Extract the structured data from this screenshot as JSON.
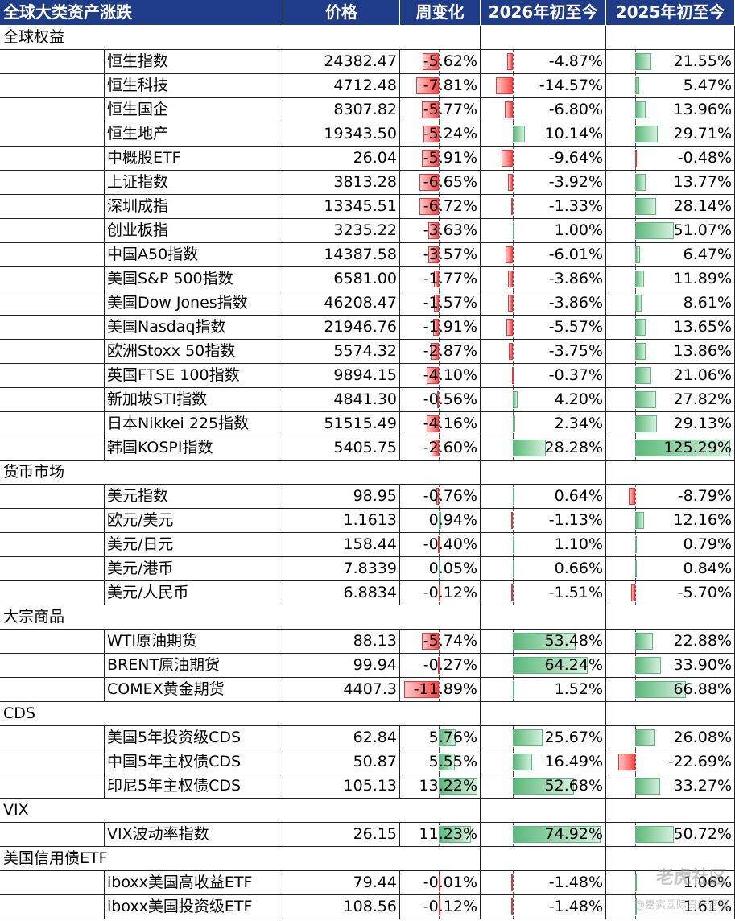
{
  "header": [
    "全球大类资产涨跌",
    "价格",
    "周变化",
    "2026年初至今",
    "2025年初至今"
  ],
  "sections": [
    {
      "title": "全球权益",
      "rows": [
        {
          "name": "恒生指数",
          "price": "24382.47",
          "week": {
            "value": -5.62,
            "label": "-5.62%"
          },
          "ytd_2026": {
            "value": -4.87,
            "label": "-4.87%"
          },
          "ytd_2025": {
            "value": 21.55,
            "label": "21.55%"
          }
        },
        {
          "name": "恒生科技",
          "price": "4712.48",
          "week": {
            "value": -7.81,
            "label": "-7.81%"
          },
          "ytd_2026": {
            "value": -14.57,
            "label": "-14.57%"
          },
          "ytd_2025": {
            "value": 5.47,
            "label": "5.47%"
          }
        },
        {
          "name": "恒生国企",
          "price": "8307.82",
          "week": {
            "value": -5.77,
            "label": "-5.77%"
          },
          "ytd_2026": {
            "value": -6.8,
            "label": "-6.80%"
          },
          "ytd_2025": {
            "value": 13.96,
            "label": "13.96%"
          }
        },
        {
          "name": "恒生地产",
          "price": "19343.50",
          "week": {
            "value": -5.24,
            "label": "-5.24%"
          },
          "ytd_2026": {
            "value": 10.14,
            "label": "10.14%"
          },
          "ytd_2025": {
            "value": 29.71,
            "label": "29.71%"
          }
        },
        {
          "name": "中概股ETF",
          "price": "26.04",
          "week": {
            "value": -5.91,
            "label": "-5.91%"
          },
          "ytd_2026": {
            "value": -9.64,
            "label": "-9.64%"
          },
          "ytd_2025": {
            "value": -0.48,
            "label": "-0.48%"
          }
        },
        {
          "name": "上证指数",
          "price": "3813.28",
          "week": {
            "value": -6.65,
            "label": "-6.65%"
          },
          "ytd_2026": {
            "value": -3.92,
            "label": "-3.92%"
          },
          "ytd_2025": {
            "value": 13.77,
            "label": "13.77%"
          }
        },
        {
          "name": "深圳成指",
          "price": "13345.51",
          "week": {
            "value": -6.72,
            "label": "-6.72%"
          },
          "ytd_2026": {
            "value": -1.33,
            "label": "-1.33%"
          },
          "ytd_2025": {
            "value": 28.14,
            "label": "28.14%"
          }
        },
        {
          "name": "创业板指",
          "price": "3235.22",
          "week": {
            "value": -3.63,
            "label": "-3.63%"
          },
          "ytd_2026": {
            "value": 1.0,
            "label": "1.00%"
          },
          "ytd_2025": {
            "value": 51.07,
            "label": "51.07%"
          }
        },
        {
          "name": "中国A50指数",
          "price": "14387.58",
          "week": {
            "value": -3.57,
            "label": "-3.57%"
          },
          "ytd_2026": {
            "value": -6.01,
            "label": "-6.01%"
          },
          "ytd_2025": {
            "value": 6.47,
            "label": "6.47%"
          }
        },
        {
          "name": "美国S&P 500指数",
          "price": "6581.00",
          "week": {
            "value": -1.77,
            "label": "-1.77%"
          },
          "ytd_2026": {
            "value": -3.86,
            "label": "-3.86%"
          },
          "ytd_2025": {
            "value": 11.89,
            "label": "11.89%"
          }
        },
        {
          "name": "美国Dow Jones指数",
          "price": "46208.47",
          "week": {
            "value": -1.57,
            "label": "-1.57%"
          },
          "ytd_2026": {
            "value": -3.86,
            "label": "-3.86%"
          },
          "ytd_2025": {
            "value": 8.61,
            "label": "8.61%"
          }
        },
        {
          "name": "美国Nasdaq指数",
          "price": "21946.76",
          "week": {
            "value": -1.91,
            "label": "-1.91%"
          },
          "ytd_2026": {
            "value": -5.57,
            "label": "-5.57%"
          },
          "ytd_2025": {
            "value": 13.65,
            "label": "13.65%"
          }
        },
        {
          "name": "欧洲Stoxx 50指数",
          "price": "5574.32",
          "week": {
            "value": -2.87,
            "label": "-2.87%"
          },
          "ytd_2026": {
            "value": -3.75,
            "label": "-3.75%"
          },
          "ytd_2025": {
            "value": 13.86,
            "label": "13.86%"
          }
        },
        {
          "name": "英国FTSE 100指数",
          "price": "9894.15",
          "week": {
            "value": -4.1,
            "label": "-4.10%"
          },
          "ytd_2026": {
            "value": -0.37,
            "label": "-0.37%"
          },
          "ytd_2025": {
            "value": 21.06,
            "label": "21.06%"
          }
        },
        {
          "name": "新加坡STI指数",
          "price": "4841.30",
          "week": {
            "value": -0.56,
            "label": "-0.56%"
          },
          "ytd_2026": {
            "value": 4.2,
            "label": "4.20%"
          },
          "ytd_2025": {
            "value": 27.82,
            "label": "27.82%"
          }
        },
        {
          "name": "日本Nikkei 225指数",
          "price": "51515.49",
          "week": {
            "value": -4.16,
            "label": "-4.16%"
          },
          "ytd_2026": {
            "value": 2.34,
            "label": "2.34%"
          },
          "ytd_2025": {
            "value": 29.13,
            "label": "29.13%"
          }
        },
        {
          "name": "韩国KOSPI指数",
          "price": "5405.75",
          "week": {
            "value": -2.6,
            "label": "-2.60%"
          },
          "ytd_2026": {
            "value": 28.28,
            "label": "28.28%"
          },
          "ytd_2025": {
            "value": 125.29,
            "label": "125.29%"
          }
        }
      ]
    },
    {
      "title": "货币市场",
      "rows": [
        {
          "name": "美元指数",
          "price": "98.95",
          "week": {
            "value": -0.76,
            "label": "-0.76%"
          },
          "ytd_2026": {
            "value": 0.64,
            "label": "0.64%"
          },
          "ytd_2025": {
            "value": -8.79,
            "label": "-8.79%"
          }
        },
        {
          "name": "欧元/美元",
          "price": "1.1613",
          "week": {
            "value": 0.94,
            "label": "0.94%"
          },
          "ytd_2026": {
            "value": -1.13,
            "label": "-1.13%"
          },
          "ytd_2025": {
            "value": 12.16,
            "label": "12.16%"
          }
        },
        {
          "name": "美元/日元",
          "price": "158.44",
          "week": {
            "value": -0.4,
            "label": "-0.40%"
          },
          "ytd_2026": {
            "value": 1.1,
            "label": "1.10%"
          },
          "ytd_2025": {
            "value": 0.79,
            "label": "0.79%"
          }
        },
        {
          "name": "美元/港币",
          "price": "7.8339",
          "week": {
            "value": 0.05,
            "label": "0.05%"
          },
          "ytd_2026": {
            "value": 0.66,
            "label": "0.66%"
          },
          "ytd_2025": {
            "value": 0.84,
            "label": "0.84%"
          }
        },
        {
          "name": "美元/人民币",
          "price": "6.8834",
          "week": {
            "value": -0.12,
            "label": "-0.12%"
          },
          "ytd_2026": {
            "value": -1.51,
            "label": "-1.51%"
          },
          "ytd_2025": {
            "value": -5.7,
            "label": "-5.70%"
          }
        }
      ]
    },
    {
      "title": "大宗商品",
      "rows": [
        {
          "name": "WTI原油期货",
          "price": "88.13",
          "week": {
            "value": -5.74,
            "label": "-5.74%"
          },
          "ytd_2026": {
            "value": 53.48,
            "label": "53.48%"
          },
          "ytd_2025": {
            "value": 22.88,
            "label": "22.88%"
          }
        },
        {
          "name": "BRENT原油期货",
          "price": "99.94",
          "week": {
            "value": -0.27,
            "label": "-0.27%"
          },
          "ytd_2026": {
            "value": 64.24,
            "label": "64.24%"
          },
          "ytd_2025": {
            "value": 33.9,
            "label": "33.90%"
          }
        },
        {
          "name": "COMEX黄金期货",
          "price": "4407.3",
          "week": {
            "value": -11.89,
            "label": "-11.89%"
          },
          "ytd_2026": {
            "value": 1.52,
            "label": "1.52%"
          },
          "ytd_2025": {
            "value": 66.88,
            "label": "66.88%"
          }
        }
      ]
    },
    {
      "title": "CDS",
      "rows": [
        {
          "name": "美国5年投资级CDS",
          "price": "62.84",
          "week": {
            "value": 5.76,
            "label": "5.76%"
          },
          "ytd_2026": {
            "value": 25.67,
            "label": "25.67%"
          },
          "ytd_2025": {
            "value": 26.08,
            "label": "26.08%"
          }
        },
        {
          "name": "中国5年主权债CDS",
          "price": "50.87",
          "week": {
            "value": 5.55,
            "label": "5.55%"
          },
          "ytd_2026": {
            "value": 16.49,
            "label": "16.49%"
          },
          "ytd_2025": {
            "value": -22.69,
            "label": "-22.69%"
          }
        },
        {
          "name": "印尼5年主权债CDS",
          "price": "105.13",
          "week": {
            "value": 13.22,
            "label": "13.22%"
          },
          "ytd_2026": {
            "value": 52.68,
            "label": "52.68%"
          },
          "ytd_2025": {
            "value": 33.27,
            "label": "33.27%"
          }
        }
      ]
    },
    {
      "title": "VIX",
      "rows": [
        {
          "name": "VIX波动率指数",
          "price": "26.15",
          "week": {
            "value": 11.23,
            "label": "11.23%"
          },
          "ytd_2026": {
            "value": 74.92,
            "label": "74.92%"
          },
          "ytd_2025": {
            "value": 50.72,
            "label": "50.72%"
          }
        }
      ]
    },
    {
      "title": "美国信用债ETF",
      "rows": [
        {
          "name": "iboxx美国高收益ETF",
          "price": "79.44",
          "week": {
            "value": -0.01,
            "label": "-0.01%"
          },
          "ytd_2026": {
            "value": -1.48,
            "label": "-1.48%"
          },
          "ytd_2025": {
            "value": 1.06,
            "label": "1.06%"
          }
        },
        {
          "name": "iboxx美国投资级ETF",
          "price": "108.56",
          "week": {
            "value": -0.12,
            "label": "-0.12%"
          },
          "ytd_2026": {
            "value": -1.48,
            "label": "-1.48%"
          },
          "ytd_2025": {
            "value": 1.61,
            "label": "1.61%"
          }
        }
      ]
    }
  ],
  "watermark": [
    "老虎社区",
    "@嘉实国际资产管理"
  ]
}
